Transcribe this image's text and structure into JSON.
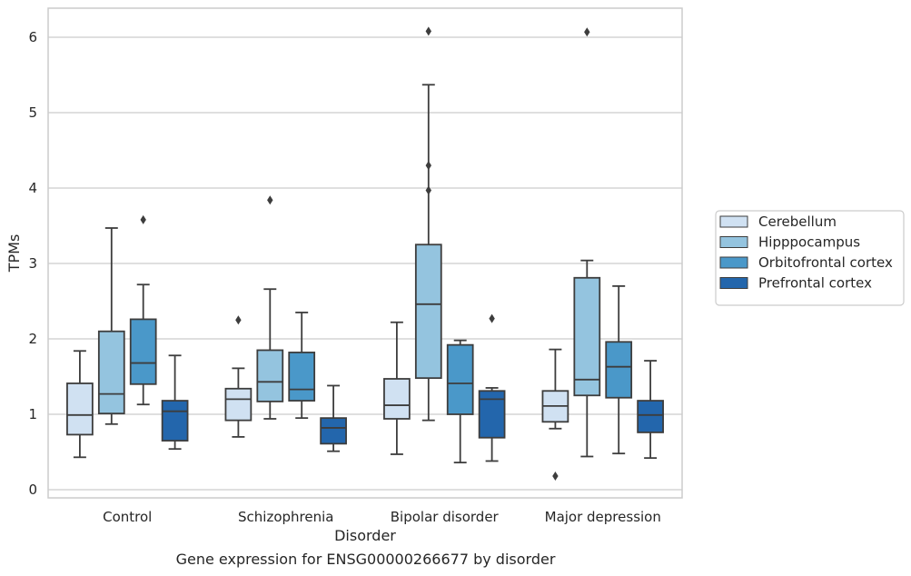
{
  "chart_data": {
    "type": "box",
    "caption": "Gene expression for ENSG00000266677 by disorder",
    "xlabel": "Disorder",
    "ylabel": "TPMs",
    "ylim": [
      -0.1,
      6.4
    ],
    "yticks": [
      0,
      1,
      2,
      3,
      4,
      5,
      6
    ],
    "grid": true,
    "legend_position": "right",
    "categories": [
      "Control",
      "Schizophrenia",
      "Bipolar disorder",
      "Major depression"
    ],
    "series": [
      {
        "name": "Cerebellum",
        "color": "#d0e1f2",
        "boxes": [
          {
            "whislo": 0.43,
            "q1": 0.73,
            "med": 0.99,
            "q3": 1.41,
            "whishi": 1.84,
            "fliers": []
          },
          {
            "whislo": 0.7,
            "q1": 0.92,
            "med": 1.2,
            "q3": 1.34,
            "whishi": 1.61,
            "fliers": [
              2.25
            ]
          },
          {
            "whislo": 0.47,
            "q1": 0.94,
            "med": 1.12,
            "q3": 1.47,
            "whishi": 2.22,
            "fliers": []
          },
          {
            "whislo": 0.81,
            "q1": 0.9,
            "med": 1.11,
            "q3": 1.31,
            "whishi": 1.86,
            "fliers": [
              0.18
            ]
          }
        ]
      },
      {
        "name": "Hipppocampus",
        "color": "#94c4df",
        "boxes": [
          {
            "whislo": 0.87,
            "q1": 1.01,
            "med": 1.27,
            "q3": 2.1,
            "whishi": 3.47,
            "fliers": []
          },
          {
            "whislo": 0.94,
            "q1": 1.17,
            "med": 1.43,
            "q3": 1.85,
            "whishi": 2.66,
            "fliers": [
              3.84
            ]
          },
          {
            "whislo": 0.92,
            "q1": 1.48,
            "med": 2.46,
            "q3": 3.25,
            "whishi": 5.37,
            "fliers": [
              3.97,
              4.3,
              6.08
            ]
          },
          {
            "whislo": 0.44,
            "q1": 1.25,
            "med": 1.46,
            "q3": 2.81,
            "whishi": 3.04,
            "fliers": [
              6.07
            ]
          }
        ]
      },
      {
        "name": "Orbitofrontal cortex",
        "color": "#4a98c9",
        "boxes": [
          {
            "whislo": 1.13,
            "q1": 1.4,
            "med": 1.68,
            "q3": 2.26,
            "whishi": 2.72,
            "fliers": [
              3.58
            ]
          },
          {
            "whislo": 0.95,
            "q1": 1.18,
            "med": 1.33,
            "q3": 1.82,
            "whishi": 2.35,
            "fliers": []
          },
          {
            "whislo": 0.36,
            "q1": 1.0,
            "med": 1.41,
            "q3": 1.92,
            "whishi": 1.98,
            "fliers": []
          },
          {
            "whislo": 0.48,
            "q1": 1.22,
            "med": 1.63,
            "q3": 1.96,
            "whishi": 2.7,
            "fliers": []
          }
        ]
      },
      {
        "name": "Prefrontal cortex",
        "color": "#2366ac",
        "boxes": [
          {
            "whislo": 0.54,
            "q1": 0.65,
            "med": 1.04,
            "q3": 1.18,
            "whishi": 1.78,
            "fliers": []
          },
          {
            "whislo": 0.51,
            "q1": 0.61,
            "med": 0.82,
            "q3": 0.95,
            "whishi": 1.38,
            "fliers": []
          },
          {
            "whislo": 0.38,
            "q1": 0.69,
            "med": 1.2,
            "q3": 1.31,
            "whishi": 1.35,
            "fliers": [
              2.27
            ]
          },
          {
            "whislo": 0.42,
            "q1": 0.76,
            "med": 0.99,
            "q3": 1.18,
            "whishi": 1.71,
            "fliers": []
          }
        ]
      }
    ]
  }
}
